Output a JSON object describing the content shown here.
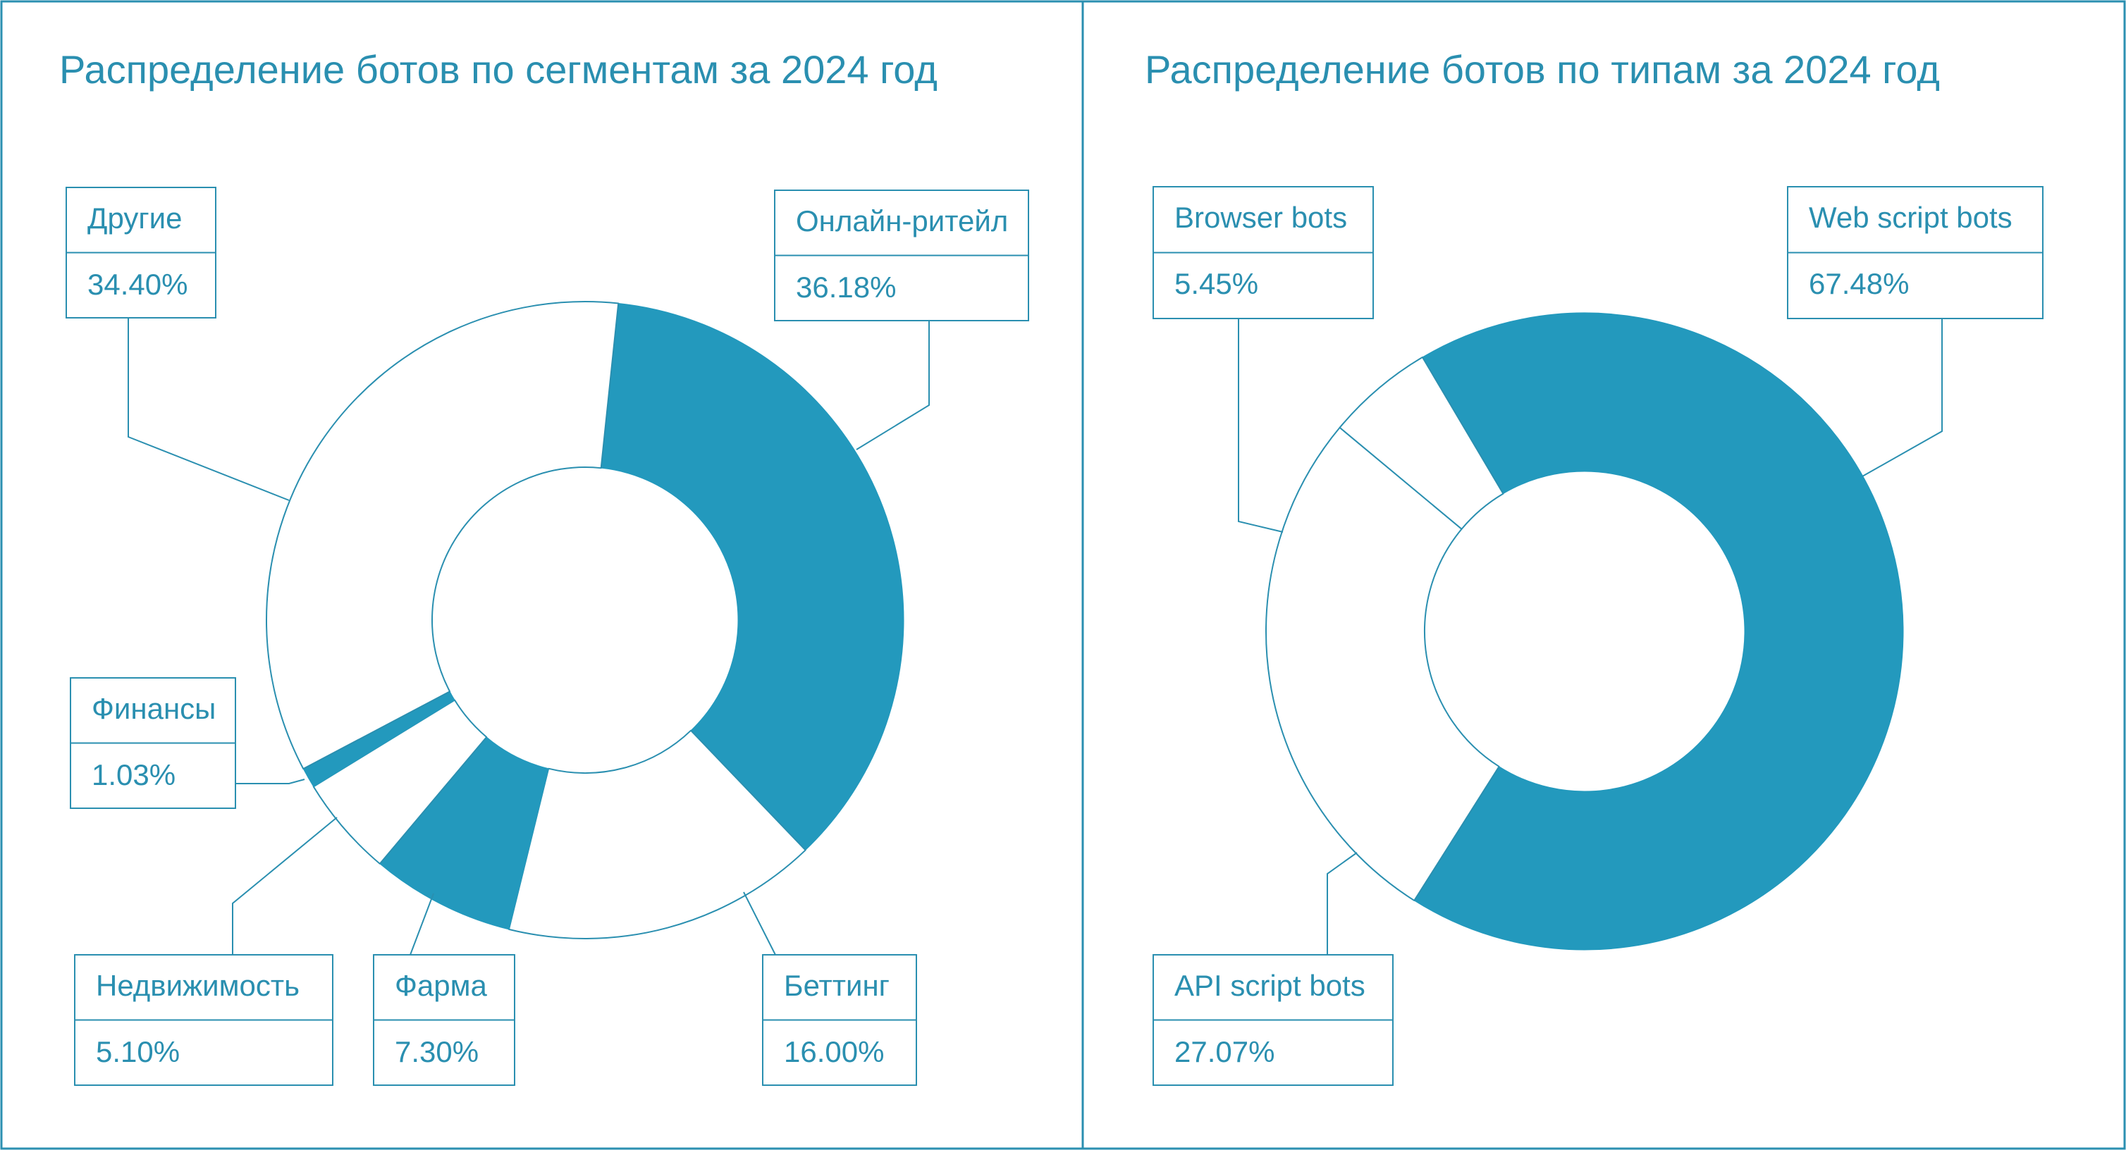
{
  "colors": {
    "accent": "#2399bd",
    "line": "#2a8fb0",
    "text": "#2a8fb0",
    "background": "#ffffff"
  },
  "chart_data": [
    {
      "type": "pie",
      "style": "donut",
      "title": "Распределение ботов по сегментам за 2024 год",
      "slices": [
        {
          "label": "Онлайн-ритейл",
          "value": 36.18,
          "display": "36.18%",
          "fill": "accent"
        },
        {
          "label": "Беттинг",
          "value": 16.0,
          "display": "16.00%",
          "fill": "none"
        },
        {
          "label": "Фарма",
          "value": 7.3,
          "display": "7.30%",
          "fill": "accent"
        },
        {
          "label": "Недвижимость",
          "value": 5.1,
          "display": "5.10%",
          "fill": "none"
        },
        {
          "label": "Финансы",
          "value": 1.03,
          "display": "1.03%",
          "fill": "accent"
        },
        {
          "label": "Другие",
          "value": 34.4,
          "display": "34.40%",
          "fill": "none"
        }
      ]
    },
    {
      "type": "pie",
      "style": "donut",
      "title": "Распределение ботов по типам за 2024 год",
      "slices": [
        {
          "label": "Web script bots",
          "value": 67.48,
          "display": "67.48%",
          "fill": "accent"
        },
        {
          "label": "API script bots",
          "value": 27.07,
          "display": "27.07%",
          "fill": "none"
        },
        {
          "label": "Browser bots",
          "value": 5.45,
          "display": "5.45%",
          "fill": "none"
        }
      ]
    }
  ]
}
